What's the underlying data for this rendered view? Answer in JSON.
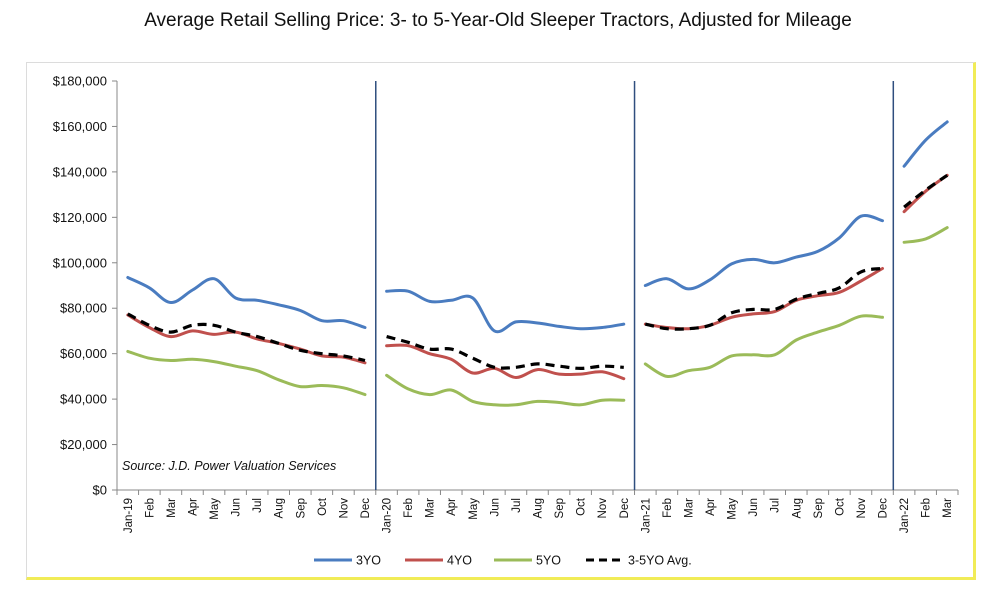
{
  "title": "Average Retail Selling Price: 3- to 5-Year-Old Sleeper Tractors, Adjusted for Mileage",
  "chart_data": {
    "type": "line",
    "source_note": "Source: J.D. Power Valuation Services",
    "ylim": [
      0,
      180000
    ],
    "y_ticks": [
      0,
      20000,
      40000,
      60000,
      80000,
      100000,
      120000,
      140000,
      160000,
      180000
    ],
    "y_tick_labels": [
      "$0",
      "$20,000",
      "$40,000",
      "$60,000",
      "$80,000",
      "$100,000",
      "$120,000",
      "$140,000",
      "$160,000",
      "$180,000"
    ],
    "x": [
      "Jan-19",
      "Feb",
      "Mar",
      "Apr",
      "May",
      "Jun",
      "Jul",
      "Aug",
      "Sep",
      "Oct",
      "Nov",
      "Dec",
      "Jan-20",
      "Feb",
      "Mar",
      "Apr",
      "May",
      "Jun",
      "Jul",
      "Aug",
      "Sep",
      "Oct",
      "Nov",
      "Dec",
      "Jan-21",
      "Feb",
      "Mar",
      "Apr",
      "May",
      "Jun",
      "Jul",
      "Aug",
      "Sep",
      "Oct",
      "Nov",
      "Dec",
      "Jan-22",
      "Feb",
      "Mar"
    ],
    "year_dividers_after": [
      "Dec",
      "Dec",
      "Dec"
    ],
    "grid": false,
    "legend_position": "bottom",
    "segments_break_between_years": true,
    "series": [
      {
        "name": "3YO",
        "color": "#4a7cc0",
        "dash": false,
        "values": [
          93500,
          89000,
          82500,
          88000,
          93000,
          84500,
          83500,
          81500,
          79000,
          74500,
          74500,
          71500,
          87500,
          87500,
          83000,
          83500,
          84500,
          70000,
          74000,
          73500,
          72000,
          71000,
          71500,
          73000,
          90000,
          93000,
          88500,
          92500,
          99500,
          101500,
          100000,
          102500,
          105000,
          111000,
          120500,
          118500,
          142500,
          154000,
          162000
        ]
      },
      {
        "name": "4YO",
        "color": "#c0504d",
        "dash": false,
        "values": [
          77000,
          71500,
          67500,
          70000,
          68500,
          69500,
          66500,
          64500,
          62000,
          59000,
          58500,
          56000,
          63500,
          63500,
          60000,
          57500,
          51500,
          53500,
          49500,
          53000,
          51000,
          51000,
          52000,
          49000,
          73000,
          71500,
          71000,
          72500,
          76000,
          77500,
          78500,
          83500,
          85500,
          87000,
          92000,
          97500,
          122500,
          131500,
          138500
        ]
      },
      {
        "name": "5YO",
        "color": "#9bbb59",
        "dash": false,
        "values": [
          61000,
          58000,
          57000,
          57500,
          56500,
          54500,
          52500,
          48500,
          45500,
          46000,
          45000,
          42000,
          50500,
          44500,
          42000,
          44000,
          39000,
          37500,
          37500,
          39000,
          38500,
          37500,
          39500,
          39500,
          55500,
          50000,
          52500,
          54000,
          59000,
          59500,
          59500,
          66000,
          69500,
          72500,
          76500,
          76000,
          109000,
          110500,
          115500
        ]
      },
      {
        "name": "3-5YO Avg.",
        "color": "#000000",
        "dash": true,
        "values": [
          77500,
          72500,
          69500,
          72500,
          72500,
          69500,
          67500,
          64500,
          61500,
          60000,
          59000,
          57000,
          67500,
          65000,
          62000,
          62000,
          58000,
          54000,
          54000,
          55500,
          54500,
          53500,
          54500,
          54000,
          73000,
          71000,
          71000,
          72500,
          78000,
          79500,
          79500,
          84000,
          86500,
          89000,
          96000,
          97500,
          124500,
          132000,
          138500
        ]
      }
    ]
  }
}
